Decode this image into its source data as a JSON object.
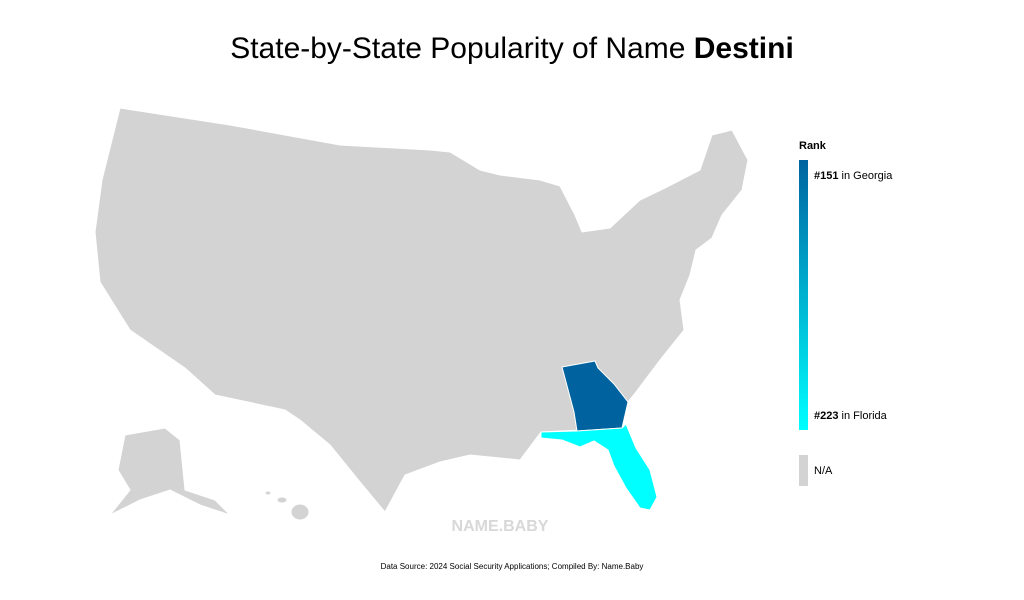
{
  "title": {
    "text": "State-by-State Popularity of Name",
    "name": "Destini"
  },
  "legend": {
    "title": "Rank",
    "connector": "in",
    "na": "N/A",
    "na_color": "#d3d3d3"
  },
  "ranked": {
    "states": [
      "Georgia",
      "Florida"
    ],
    "values": [
      151,
      223
    ],
    "value_labels": [
      "#151",
      "#223"
    ],
    "colors": [
      "#0063a0",
      "#00ffff"
    ]
  },
  "watermark": "NAME.BABY",
  "source": "Data Source: 2024 Social Security Applications; Compiled By: Name.Baby"
}
